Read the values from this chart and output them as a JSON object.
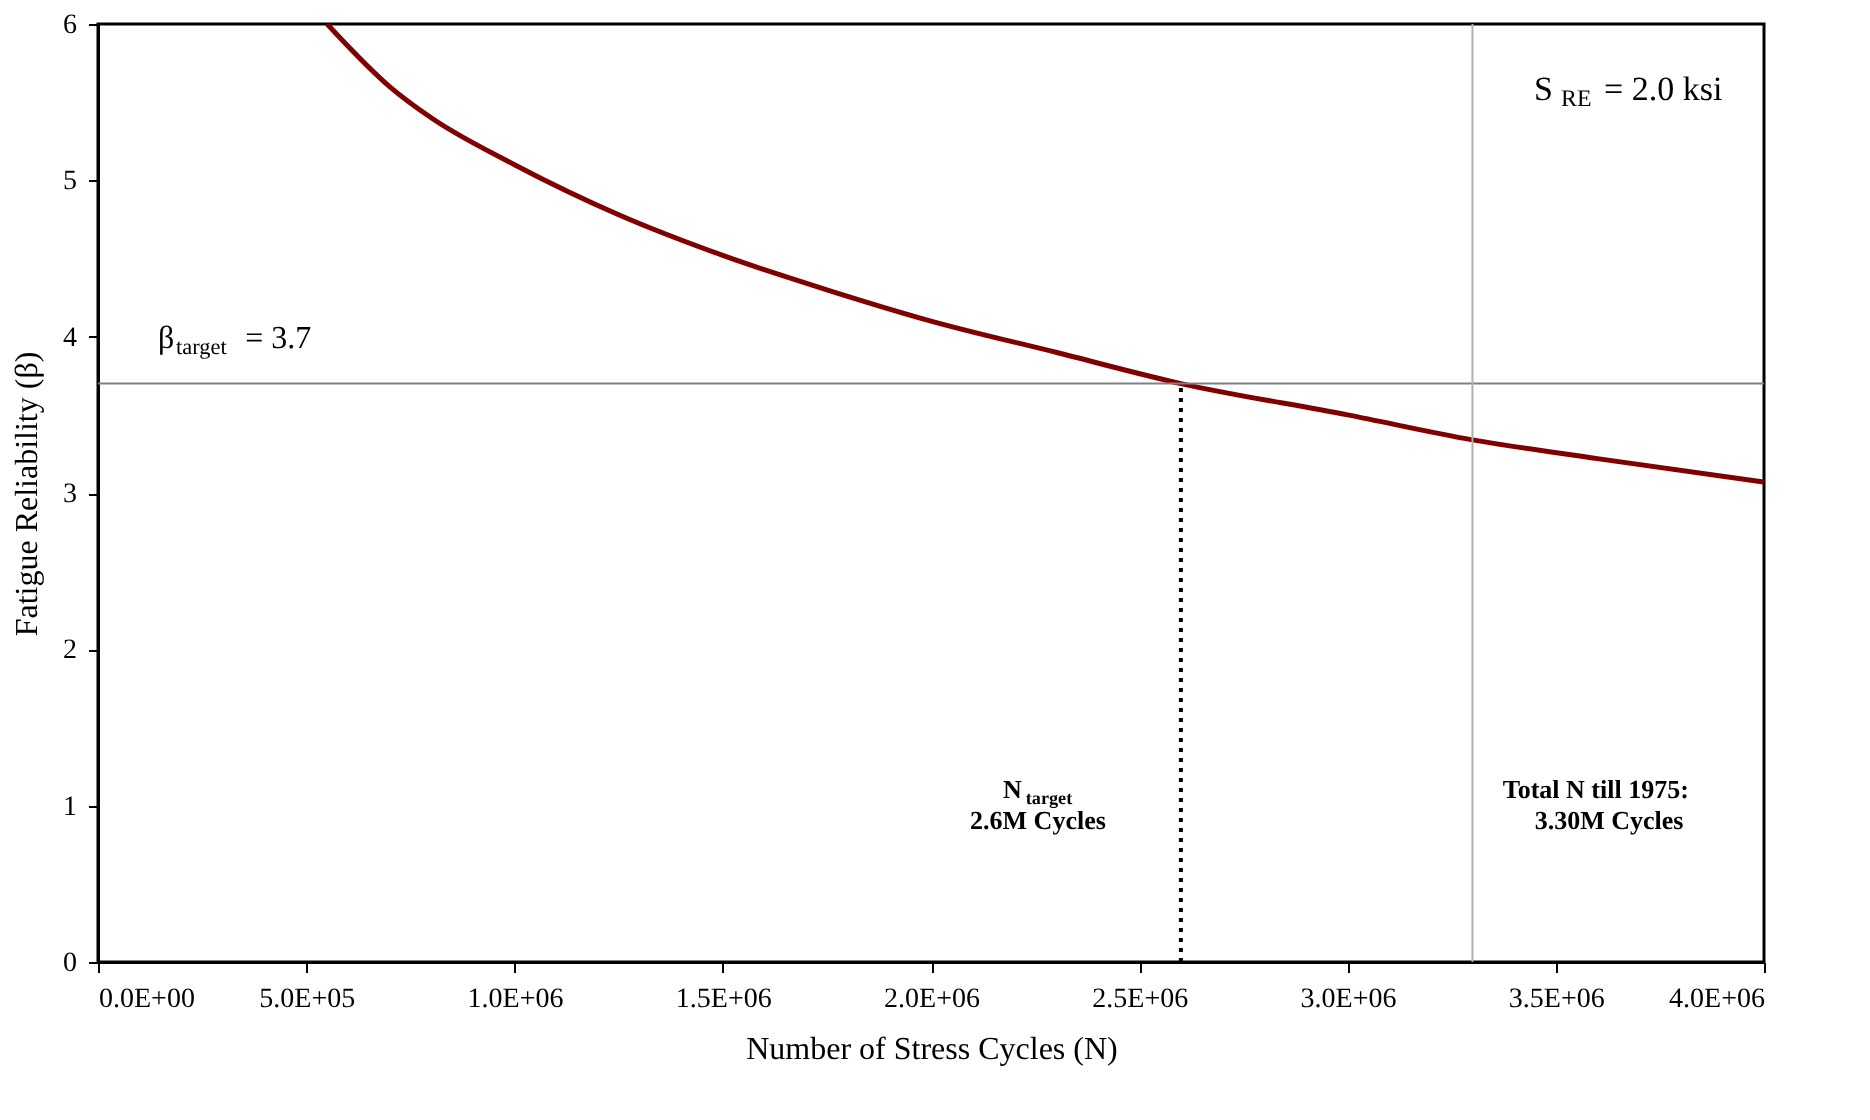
{
  "chart_data": {
    "type": "line",
    "xlabel": "Number of Stress Cycles (N)",
    "ylabel": "Fatigue Reliability (β)",
    "x": [
      550000,
      700000,
      800000,
      1000000,
      1250000,
      1500000,
      1750000,
      2000000,
      2300000,
      2600000,
      3000000,
      3300000,
      3600000,
      4000000
    ],
    "series": [
      {
        "color": "#800000",
        "values": [
          6.0,
          5.6,
          5.4,
          5.1,
          4.78,
          4.52,
          4.3,
          4.1,
          3.9,
          3.7,
          3.5,
          3.34,
          3.22,
          3.07
        ]
      }
    ],
    "xlim": [
      0,
      4000000
    ],
    "ylim": [
      0,
      6
    ],
    "xticks": [
      {
        "value": 0,
        "label": "0.0E+00"
      },
      {
        "value": 500000,
        "label": "5.0E+05"
      },
      {
        "value": 1000000,
        "label": "1.0E+06"
      },
      {
        "value": 1500000,
        "label": "1.5E+06"
      },
      {
        "value": 2000000,
        "label": "2.0E+06"
      },
      {
        "value": 2500000,
        "label": "2.5E+06"
      },
      {
        "value": 3000000,
        "label": "3.0E+06"
      },
      {
        "value": 3500000,
        "label": "3.5E+06"
      },
      {
        "value": 4000000,
        "label": "4.0E+06"
      }
    ],
    "yticks": [
      0,
      1,
      2,
      3,
      4,
      5,
      6
    ],
    "ref_lines": [
      {
        "axis": "y",
        "value": 3.7,
        "label": "β$_{target}$ = 3.7",
        "color": "#808080",
        "line_style": "solid"
      },
      {
        "axis": "x",
        "value": 2600000,
        "label": "N$_{target}$\n2.6M Cycles",
        "color": "#000000",
        "line_style": "dotted"
      },
      {
        "axis": "x",
        "value": 3300000,
        "label": "Total N till 1975:\n3.30M Cycles",
        "color": "#b0b0b0",
        "line_style": "solid"
      }
    ],
    "annotations": [
      "S$_{RE}$ = 2.0 ksi"
    ],
    "grid": false,
    "marker": "none",
    "line_style": "solid"
  }
}
